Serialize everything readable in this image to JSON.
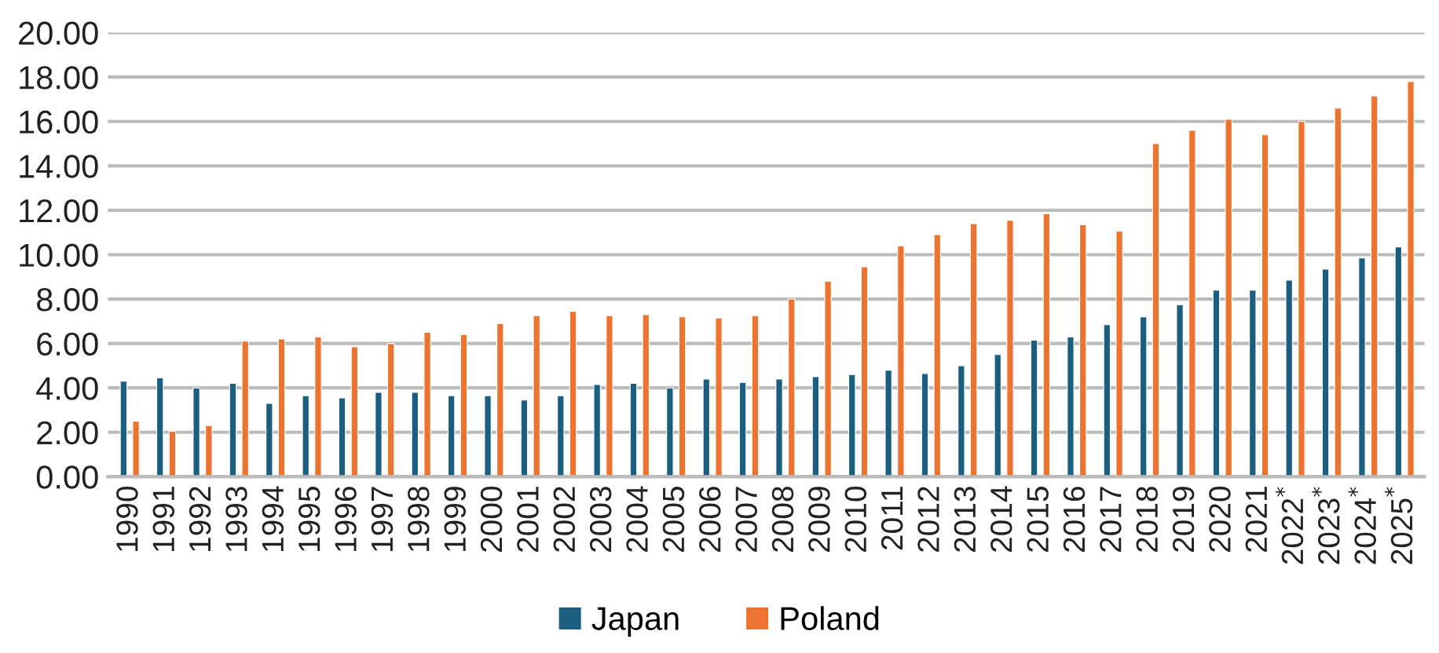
{
  "chart_data": {
    "type": "bar",
    "categories": [
      "1990",
      "1991",
      "1992",
      "1993",
      "1994",
      "1995",
      "1996",
      "1997",
      "1998",
      "1999",
      "2000",
      "2001",
      "2002",
      "2003",
      "2004",
      "2005",
      "2006",
      "2007",
      "2008",
      "2009",
      "2010",
      "2011",
      "2012",
      "2013",
      "2014",
      "2015",
      "2016",
      "2017",
      "2018",
      "2019",
      "2020",
      "2021",
      "2022$^{*}$",
      "2023$^{*}$",
      "2024$^{*}$",
      "2025$^{*}$"
    ],
    "series": [
      {
        "name": "Japan",
        "color": "#1b5e80",
        "values": [
          4.3,
          4.45,
          4.0,
          4.2,
          3.3,
          3.65,
          3.55,
          3.8,
          3.8,
          3.65,
          3.65,
          3.45,
          3.65,
          4.15,
          4.2,
          4.0,
          4.4,
          4.25,
          4.4,
          4.5,
          4.6,
          4.8,
          4.65,
          5.0,
          5.5,
          6.15,
          6.3,
          6.85,
          7.2,
          7.75,
          8.4,
          8.4,
          8.85,
          9.35,
          9.85,
          10.35
        ]
      },
      {
        "name": "Poland",
        "color": "#ec7430",
        "values": [
          2.5,
          2.05,
          2.3,
          6.1,
          6.2,
          6.3,
          5.85,
          6.0,
          6.5,
          6.4,
          6.9,
          7.25,
          7.45,
          7.25,
          7.3,
          7.2,
          7.15,
          7.25,
          8.0,
          8.8,
          9.45,
          10.4,
          10.9,
          11.4,
          11.55,
          11.85,
          11.35,
          11.05,
          15.0,
          15.6,
          16.1,
          15.4,
          16.0,
          16.6,
          17.15,
          17.8
        ]
      }
    ],
    "ylim": [
      0,
      20
    ],
    "yticks": [
      {
        "value": 0,
        "label": "0.00"
      },
      {
        "value": 2,
        "label": "2.00"
      },
      {
        "value": 4,
        "label": "4.00"
      },
      {
        "value": 6,
        "label": "6.00"
      },
      {
        "value": 8,
        "label": "8.00"
      },
      {
        "value": 10,
        "label": "10.00"
      },
      {
        "value": 12,
        "label": "12.00"
      },
      {
        "value": 14,
        "label": "14.00"
      },
      {
        "value": 16,
        "label": "16.00"
      },
      {
        "value": 18,
        "label": "18.00"
      },
      {
        "value": 20,
        "label": "20.00"
      }
    ],
    "grid": "y",
    "legend": "bottom"
  }
}
